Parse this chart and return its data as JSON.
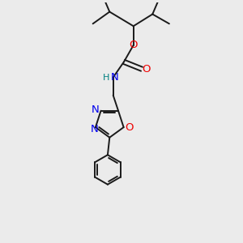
{
  "bg_color": "#ebebeb",
  "bond_color": "#1a1a1a",
  "N_color": "#0000ee",
  "O_color": "#ee0000",
  "H_color": "#008080",
  "figsize": [
    3.0,
    3.0
  ],
  "dpi": 100,
  "xlim": [
    0,
    10
  ],
  "ylim": [
    0,
    10
  ]
}
